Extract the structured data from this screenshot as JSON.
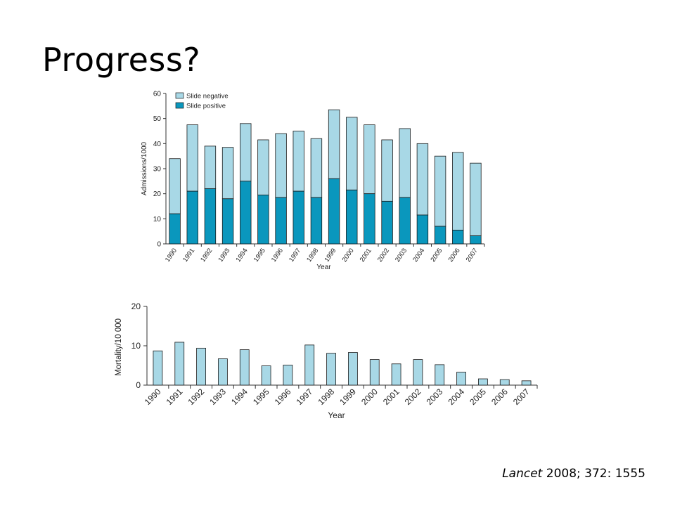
{
  "slide": {
    "title": "Progress?",
    "citation_journal": "Lancet",
    "citation_rest": " 2008; 372: 1555"
  },
  "colors": {
    "slide_negative": "#a8d8e6",
    "slide_positive": "#0a97bd",
    "mortality_bar": "#a8d8e6",
    "axis": "#333333",
    "bar_stroke": "#1a1a1a"
  },
  "chart_data": [
    {
      "type": "bar",
      "stacked": true,
      "categories": [
        "1990",
        "1991",
        "1992",
        "1993",
        "1994",
        "1995",
        "1996",
        "1997",
        "1998",
        "1999",
        "2000",
        "2001",
        "2002",
        "2003",
        "2004",
        "2005",
        "2006",
        "2007"
      ],
      "series": [
        {
          "name": "Slide positive",
          "values": [
            12,
            21,
            22,
            18,
            25,
            19.5,
            18.5,
            21,
            18.5,
            26,
            21.5,
            20,
            17,
            18.5,
            11.5,
            7,
            5.5,
            3.2
          ]
        },
        {
          "name": "Slide negative",
          "values": [
            22,
            26.5,
            17,
            20.5,
            23,
            22,
            25.5,
            24,
            23.5,
            27.5,
            29,
            27.5,
            24.5,
            27.5,
            28.5,
            28,
            31,
            29
          ]
        }
      ],
      "xlabel": "Year",
      "ylabel": "Admissions/1000",
      "ylim": [
        0,
        60
      ],
      "yticks": [
        0,
        10,
        20,
        30,
        40,
        50,
        60
      ],
      "legend_position": "top-left"
    },
    {
      "type": "bar",
      "categories": [
        "1990",
        "1991",
        "1992",
        "1993",
        "1994",
        "1995",
        "1996",
        "1997",
        "1998",
        "1999",
        "2000",
        "2001",
        "2002",
        "2003",
        "2004",
        "2005",
        "2006",
        "2007"
      ],
      "values": [
        8.7,
        10.9,
        9.4,
        6.7,
        9.0,
        4.9,
        5.1,
        10.2,
        8.1,
        8.3,
        6.5,
        5.4,
        6.5,
        5.2,
        3.3,
        1.6,
        1.4,
        1.1
      ],
      "xlabel": "Year",
      "ylabel": "Mortality/10 000",
      "ylim": [
        0,
        20
      ],
      "yticks": [
        0,
        10,
        20
      ]
    }
  ]
}
